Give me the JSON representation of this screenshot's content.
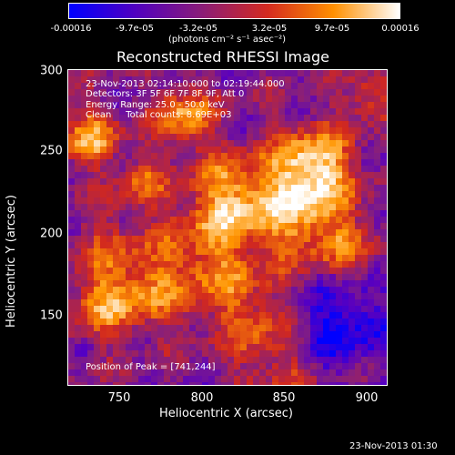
{
  "colorbar": {
    "ticks": [
      "-0.00016",
      "-9.7e-05",
      "-3.2e-05",
      "3.2e-05",
      "9.7e-05",
      "0.00016"
    ],
    "unit": "(photons cm⁻² s⁻¹ asec⁻²)",
    "colors": [
      "#0000ff",
      "#5000c0",
      "#8a1c78",
      "#d42a20",
      "#ff9000",
      "#ffffff"
    ]
  },
  "title": "Reconstructed RHESSI Image",
  "info": {
    "time_range": "23-Nov-2013 02:14:10.000 to 02:19:44.000",
    "detectors": "Detectors: 3F 5F 6F 7F 8F 9F, Att 0",
    "energy": "Energy Range: 25.0 - 50.0 keV",
    "clean": "Clean     Total counts: 8.69E+03",
    "peak": "Position of Peak = [741,244]"
  },
  "x_axis": {
    "label": "Heliocentric X (arcsec)",
    "ticks": [
      "750",
      "800",
      "850",
      "900"
    ]
  },
  "y_axis": {
    "label": "Heliocentric Y (arcsec)",
    "ticks": [
      "300",
      "250",
      "200",
      "150"
    ]
  },
  "footer_timestamp": "23-Nov-2013 01:30"
}
